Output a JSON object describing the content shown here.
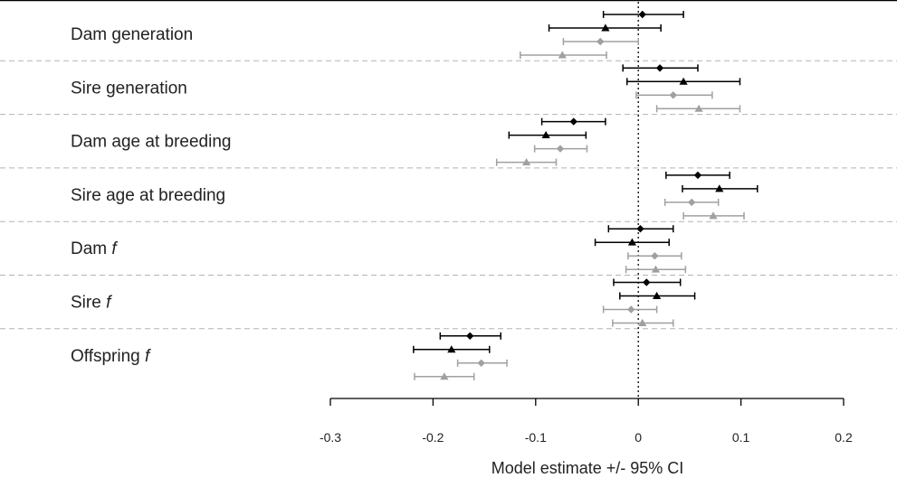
{
  "chart_data": {
    "type": "forest",
    "title": "",
    "xlabel": "Model estimate +/- 95% CI",
    "xlim": [
      -0.3,
      0.2
    ],
    "xticks": [
      -0.3,
      -0.2,
      -0.1,
      0,
      0.1,
      0.2
    ],
    "xtick_labels": [
      "-0.3",
      "-0.2",
      "-0.1",
      "0",
      "0.1",
      "0.2"
    ],
    "reference_line": 0,
    "series_styles": [
      {
        "name": "series 1",
        "marker": "diamond",
        "color": "#000000"
      },
      {
        "name": "series 2",
        "marker": "triangle",
        "color": "#000000"
      },
      {
        "name": "series 3",
        "marker": "diamond",
        "color": "#a0a0a0"
      },
      {
        "name": "series 4",
        "marker": "triangle",
        "color": "#a0a0a0"
      }
    ],
    "groups": [
      {
        "label": "Dam generation",
        "italic": "",
        "estimates": [
          {
            "est": 0.004,
            "lo": -0.034,
            "hi": 0.044
          },
          {
            "est": -0.032,
            "lo": -0.087,
            "hi": 0.022
          },
          {
            "est": -0.037,
            "lo": -0.073,
            "hi": 0.0
          },
          {
            "est": -0.074,
            "lo": -0.115,
            "hi": -0.031
          }
        ]
      },
      {
        "label": "Sire generation",
        "italic": "",
        "estimates": [
          {
            "est": 0.021,
            "lo": -0.015,
            "hi": 0.058
          },
          {
            "est": 0.044,
            "lo": -0.011,
            "hi": 0.099
          },
          {
            "est": 0.034,
            "lo": -0.002,
            "hi": 0.072
          },
          {
            "est": 0.059,
            "lo": 0.018,
            "hi": 0.099
          }
        ]
      },
      {
        "label": "Dam age at breeding",
        "italic": "",
        "estimates": [
          {
            "est": -0.063,
            "lo": -0.094,
            "hi": -0.032
          },
          {
            "est": -0.09,
            "lo": -0.126,
            "hi": -0.051
          },
          {
            "est": -0.076,
            "lo": -0.101,
            "hi": -0.05
          },
          {
            "est": -0.109,
            "lo": -0.138,
            "hi": -0.08
          }
        ]
      },
      {
        "label": "Sire age at breeding",
        "italic": "",
        "estimates": [
          {
            "est": 0.058,
            "lo": 0.027,
            "hi": 0.089
          },
          {
            "est": 0.079,
            "lo": 0.043,
            "hi": 0.116
          },
          {
            "est": 0.052,
            "lo": 0.026,
            "hi": 0.078
          },
          {
            "est": 0.073,
            "lo": 0.044,
            "hi": 0.103
          }
        ]
      },
      {
        "label": "Dam ",
        "italic": "f",
        "estimates": [
          {
            "est": 0.002,
            "lo": -0.029,
            "hi": 0.034
          },
          {
            "est": -0.006,
            "lo": -0.042,
            "hi": 0.03
          },
          {
            "est": 0.016,
            "lo": -0.01,
            "hi": 0.042
          },
          {
            "est": 0.017,
            "lo": -0.012,
            "hi": 0.046
          }
        ]
      },
      {
        "label": "Sire ",
        "italic": "f",
        "estimates": [
          {
            "est": 0.008,
            "lo": -0.024,
            "hi": 0.041
          },
          {
            "est": 0.018,
            "lo": -0.018,
            "hi": 0.055
          },
          {
            "est": -0.007,
            "lo": -0.034,
            "hi": 0.018
          },
          {
            "est": 0.004,
            "lo": -0.025,
            "hi": 0.034
          }
        ]
      },
      {
        "label": "Offspring ",
        "italic": "f",
        "estimates": [
          {
            "est": -0.164,
            "lo": -0.193,
            "hi": -0.134
          },
          {
            "est": -0.182,
            "lo": -0.219,
            "hi": -0.145
          },
          {
            "est": -0.153,
            "lo": -0.176,
            "hi": -0.128
          },
          {
            "est": -0.189,
            "lo": -0.218,
            "hi": -0.16
          }
        ]
      }
    ]
  }
}
